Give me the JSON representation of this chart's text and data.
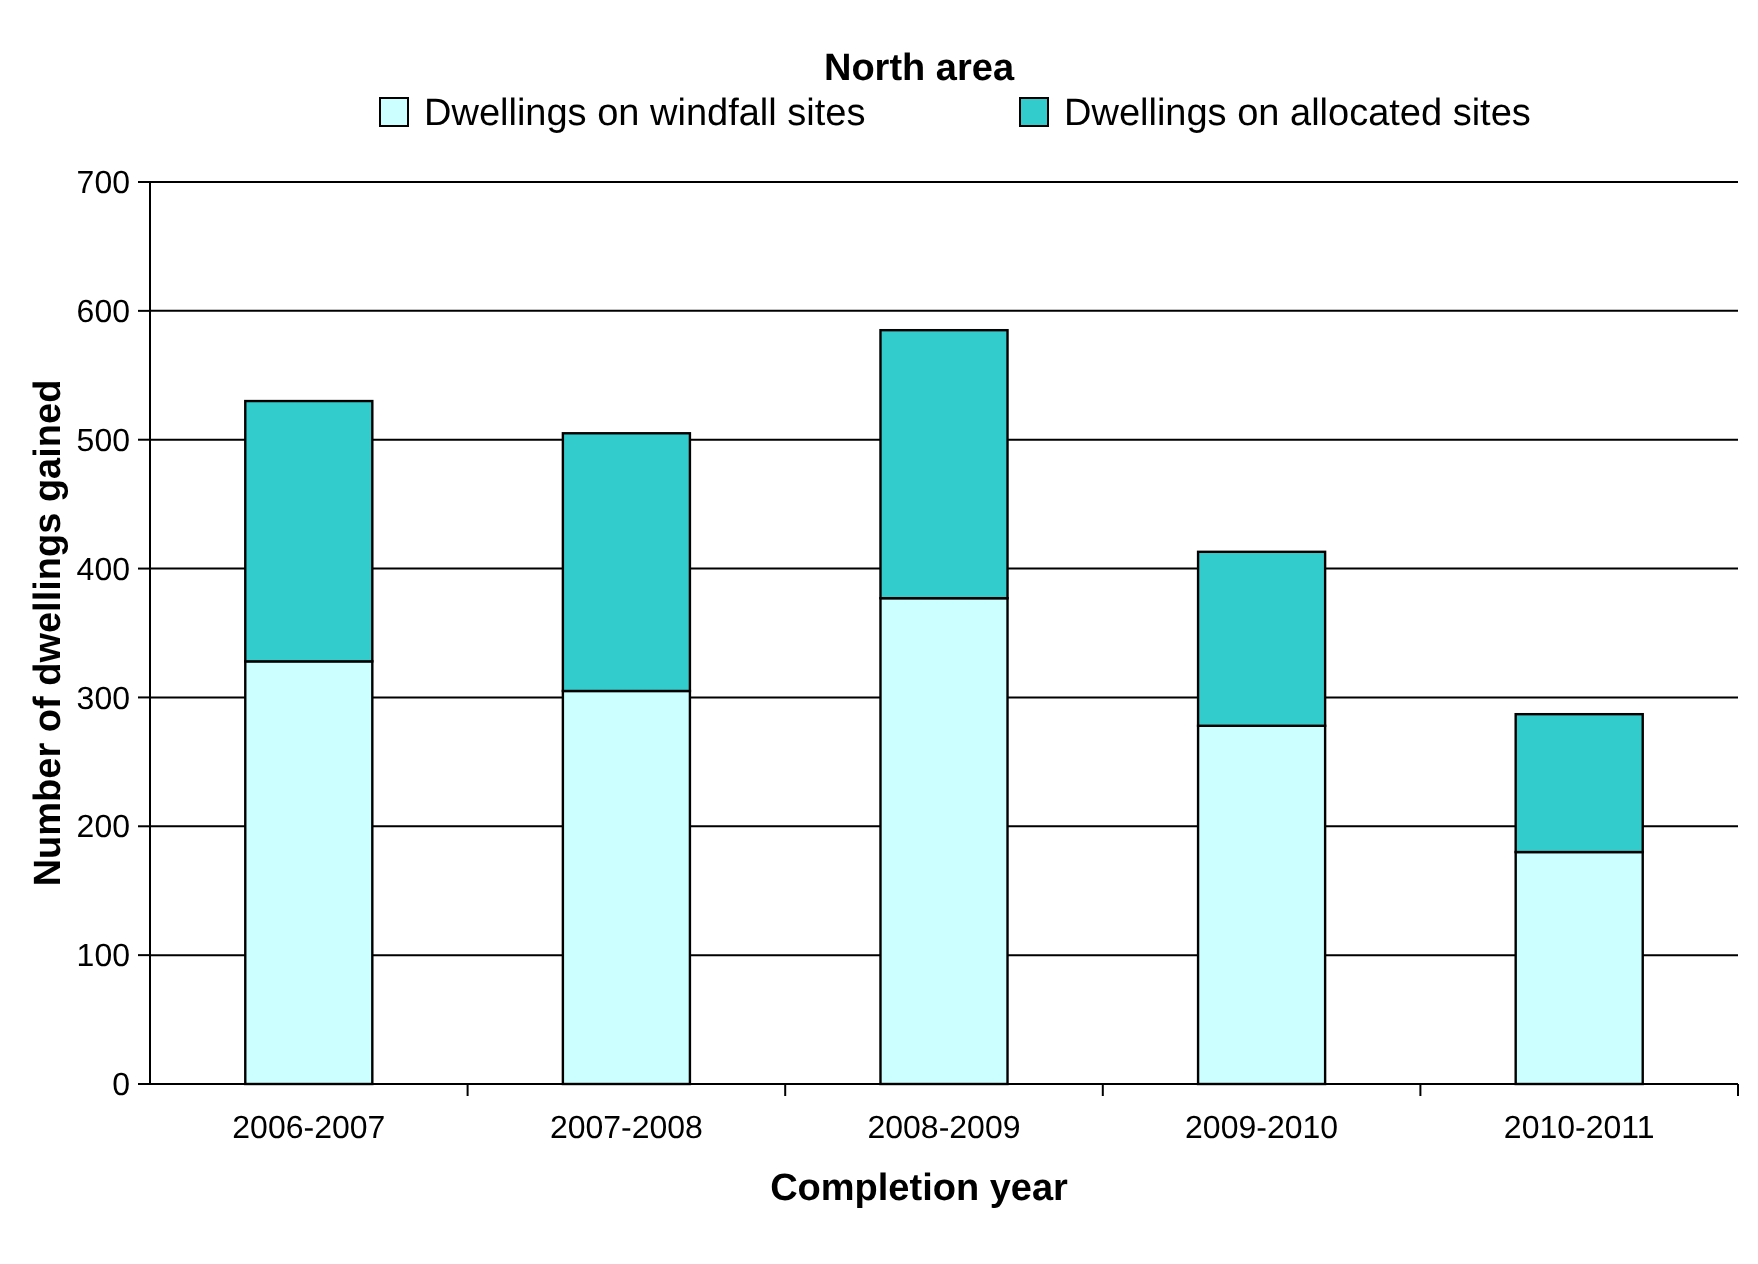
{
  "chart_data": {
    "type": "bar",
    "title": "North area",
    "xlabel": "Completion year",
    "ylabel": "Number of dwellings gained",
    "categories": [
      "2006-2007",
      "2007-2008",
      "2008-2009",
      "2009-2010",
      "2010-2011"
    ],
    "stacked": true,
    "series": [
      {
        "name": "Dwellings on windfall sites",
        "color": "#ccffff",
        "values": [
          328,
          305,
          377,
          278,
          180
        ]
      },
      {
        "name": "Dwellings on allocated sites",
        "color": "#33cccc",
        "values": [
          202,
          200,
          208,
          135,
          107
        ]
      }
    ],
    "ylim": [
      0,
      700
    ],
    "yticks": [
      0,
      100,
      200,
      300,
      400,
      500,
      600,
      700
    ],
    "grid": "y",
    "legend": "top"
  }
}
